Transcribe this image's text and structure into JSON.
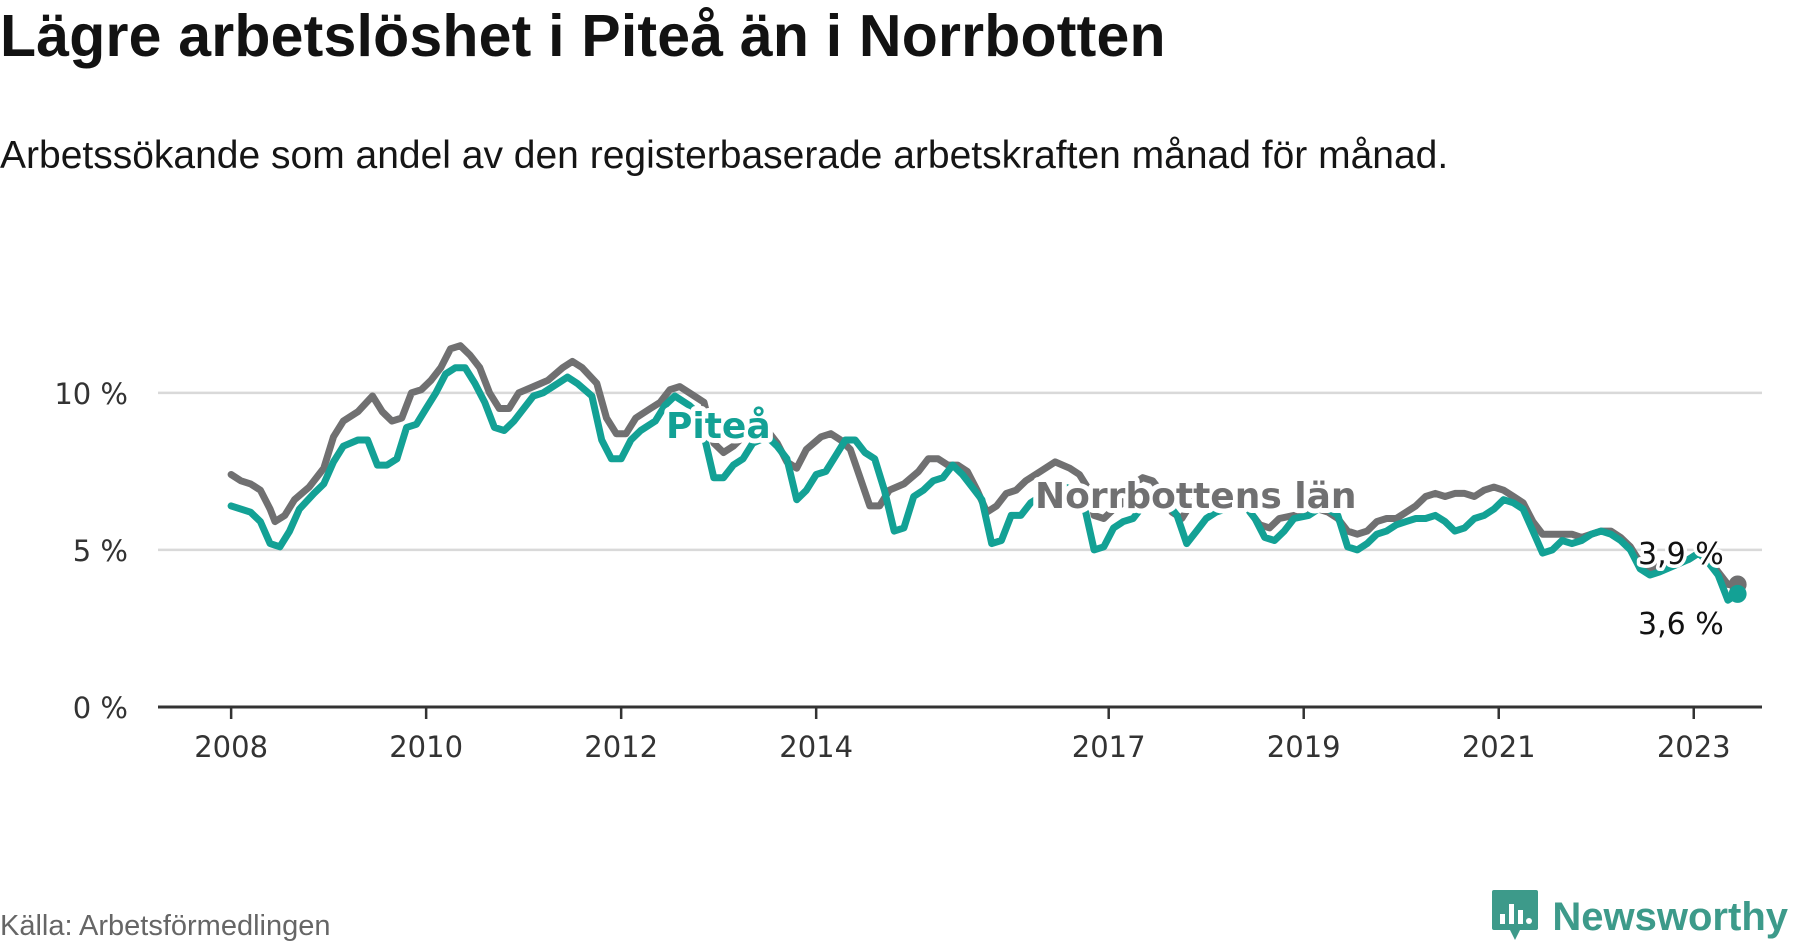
{
  "title": "Lägre arbetslöshet i Piteå än i Norrbotten",
  "subtitle": "Arbetssökande som andel av den registerbaserade arbetskraften månad för månad.",
  "source": "Källa: Arbetsförmedlingen",
  "logo": {
    "name": "Newsworthy",
    "icon": "newsworthy-logo-icon"
  },
  "colors": {
    "pitea": "#13a195",
    "norrbotten": "#707071",
    "grid": "#d9d9d9",
    "axis": "#333333",
    "brand": "#3d9a8a"
  },
  "chart_data": {
    "type": "line",
    "ylim": [
      0,
      12
    ],
    "xlim": [
      2007.25,
      2023.7
    ],
    "y_ticks": [
      {
        "value": 0,
        "label": "0 %"
      },
      {
        "value": 5,
        "label": "5 %"
      },
      {
        "value": 10,
        "label": "10 %"
      }
    ],
    "x_ticks": [
      {
        "value": 2008,
        "label": "2008"
      },
      {
        "value": 2010,
        "label": "2010"
      },
      {
        "value": 2012,
        "label": "2012"
      },
      {
        "value": 2014,
        "label": "2014"
      },
      {
        "value": 2017,
        "label": "2017"
      },
      {
        "value": 2019,
        "label": "2019"
      },
      {
        "value": 2021,
        "label": "2021"
      },
      {
        "value": 2023,
        "label": "2023"
      }
    ],
    "grid": true,
    "series": [
      {
        "name": "Norrbottens län",
        "label": "Norrbottens län",
        "color_key": "norrbotten",
        "end_label": "3,9 %",
        "end_value": 3.9,
        "points": [
          [
            2008.0,
            7.4
          ],
          [
            2008.1,
            7.2
          ],
          [
            2008.2,
            7.1
          ],
          [
            2008.3,
            6.9
          ],
          [
            2008.4,
            6.3
          ],
          [
            2008.45,
            5.9
          ],
          [
            2008.55,
            6.1
          ],
          [
            2008.65,
            6.6
          ],
          [
            2008.8,
            7.0
          ],
          [
            2008.95,
            7.6
          ],
          [
            2009.05,
            8.6
          ],
          [
            2009.15,
            9.1
          ],
          [
            2009.3,
            9.4
          ],
          [
            2009.45,
            9.9
          ],
          [
            2009.55,
            9.4
          ],
          [
            2009.65,
            9.1
          ],
          [
            2009.75,
            9.2
          ],
          [
            2009.85,
            10.0
          ],
          [
            2009.95,
            10.1
          ],
          [
            2010.05,
            10.4
          ],
          [
            2010.15,
            10.8
          ],
          [
            2010.25,
            11.4
          ],
          [
            2010.35,
            11.5
          ],
          [
            2010.45,
            11.2
          ],
          [
            2010.55,
            10.8
          ],
          [
            2010.65,
            10.0
          ],
          [
            2010.75,
            9.5
          ],
          [
            2010.85,
            9.5
          ],
          [
            2010.95,
            10.0
          ],
          [
            2011.1,
            10.2
          ],
          [
            2011.25,
            10.4
          ],
          [
            2011.4,
            10.8
          ],
          [
            2011.5,
            11.0
          ],
          [
            2011.6,
            10.8
          ],
          [
            2011.75,
            10.3
          ],
          [
            2011.85,
            9.2
          ],
          [
            2011.95,
            8.7
          ],
          [
            2012.05,
            8.7
          ],
          [
            2012.15,
            9.2
          ],
          [
            2012.3,
            9.5
          ],
          [
            2012.4,
            9.7
          ],
          [
            2012.5,
            10.1
          ],
          [
            2012.6,
            10.2
          ],
          [
            2012.75,
            9.9
          ],
          [
            2012.85,
            9.7
          ],
          [
            2012.95,
            8.4
          ],
          [
            2013.05,
            8.1
          ],
          [
            2013.15,
            8.3
          ],
          [
            2013.25,
            8.6
          ],
          [
            2013.4,
            8.9
          ],
          [
            2013.5,
            8.8
          ],
          [
            2013.6,
            8.4
          ],
          [
            2013.7,
            7.8
          ],
          [
            2013.8,
            7.6
          ],
          [
            2013.9,
            8.2
          ],
          [
            2014.05,
            8.6
          ],
          [
            2014.15,
            8.7
          ],
          [
            2014.25,
            8.5
          ],
          [
            2014.35,
            8.2
          ],
          [
            2014.45,
            7.3
          ],
          [
            2014.55,
            6.4
          ],
          [
            2014.65,
            6.4
          ],
          [
            2014.75,
            6.9
          ],
          [
            2014.9,
            7.1
          ],
          [
            2015.05,
            7.5
          ],
          [
            2015.15,
            7.9
          ],
          [
            2015.25,
            7.9
          ],
          [
            2015.35,
            7.7
          ],
          [
            2015.45,
            7.7
          ],
          [
            2015.55,
            7.5
          ],
          [
            2015.65,
            6.9
          ],
          [
            2015.75,
            6.2
          ],
          [
            2015.85,
            6.4
          ],
          [
            2015.95,
            6.8
          ],
          [
            2016.05,
            6.9
          ],
          [
            2016.15,
            7.2
          ],
          [
            2016.3,
            7.5
          ],
          [
            2016.45,
            7.8
          ],
          [
            2016.6,
            7.6
          ],
          [
            2016.7,
            7.4
          ],
          [
            2016.8,
            6.9
          ],
          [
            2016.85,
            6.1
          ],
          [
            2016.95,
            6.0
          ],
          [
            2017.05,
            6.3
          ],
          [
            2017.15,
            6.5
          ],
          [
            2017.25,
            7.1
          ],
          [
            2017.35,
            7.3
          ],
          [
            2017.45,
            7.2
          ],
          [
            2017.55,
            6.8
          ],
          [
            2017.65,
            6.2
          ],
          [
            2017.75,
            6.0
          ],
          [
            2017.85,
            6.5
          ],
          [
            2017.95,
            6.8
          ],
          [
            2018.05,
            6.9
          ],
          [
            2018.15,
            6.9
          ],
          [
            2018.25,
            6.8
          ],
          [
            2018.35,
            6.7
          ],
          [
            2018.45,
            6.2
          ],
          [
            2018.55,
            5.8
          ],
          [
            2018.65,
            5.7
          ],
          [
            2018.75,
            6.0
          ],
          [
            2018.9,
            6.1
          ],
          [
            2019.05,
            6.2
          ],
          [
            2019.15,
            6.3
          ],
          [
            2019.25,
            6.2
          ],
          [
            2019.35,
            6.0
          ],
          [
            2019.45,
            5.6
          ],
          [
            2019.55,
            5.5
          ],
          [
            2019.65,
            5.6
          ],
          [
            2019.75,
            5.9
          ],
          [
            2019.85,
            6.0
          ],
          [
            2019.95,
            6.0
          ],
          [
            2020.05,
            6.2
          ],
          [
            2020.15,
            6.4
          ],
          [
            2020.25,
            6.7
          ],
          [
            2020.35,
            6.8
          ],
          [
            2020.45,
            6.7
          ],
          [
            2020.55,
            6.8
          ],
          [
            2020.65,
            6.8
          ],
          [
            2020.75,
            6.7
          ],
          [
            2020.85,
            6.9
          ],
          [
            2020.95,
            7.0
          ],
          [
            2021.05,
            6.9
          ],
          [
            2021.15,
            6.7
          ],
          [
            2021.25,
            6.5
          ],
          [
            2021.35,
            5.9
          ],
          [
            2021.45,
            5.5
          ],
          [
            2021.6,
            5.5
          ],
          [
            2021.75,
            5.5
          ],
          [
            2021.85,
            5.4
          ],
          [
            2021.95,
            5.5
          ],
          [
            2022.05,
            5.6
          ],
          [
            2022.15,
            5.6
          ],
          [
            2022.25,
            5.4
          ],
          [
            2022.35,
            5.1
          ],
          [
            2022.45,
            4.6
          ],
          [
            2022.55,
            4.4
          ],
          [
            2022.65,
            4.5
          ],
          [
            2022.8,
            4.6
          ],
          [
            2022.95,
            4.7
          ],
          [
            2023.05,
            4.9
          ],
          [
            2023.15,
            4.7
          ],
          [
            2023.25,
            4.3
          ],
          [
            2023.35,
            3.9
          ],
          [
            2023.45,
            3.9
          ]
        ]
      },
      {
        "name": "Piteå",
        "label": "Piteå",
        "color_key": "pitea",
        "end_label": "3,6 %",
        "end_value": 3.6,
        "points": [
          [
            2008.0,
            6.4
          ],
          [
            2008.1,
            6.3
          ],
          [
            2008.2,
            6.2
          ],
          [
            2008.3,
            5.9
          ],
          [
            2008.4,
            5.2
          ],
          [
            2008.5,
            5.1
          ],
          [
            2008.6,
            5.6
          ],
          [
            2008.7,
            6.3
          ],
          [
            2008.85,
            6.8
          ],
          [
            2008.95,
            7.1
          ],
          [
            2009.05,
            7.8
          ],
          [
            2009.15,
            8.3
          ],
          [
            2009.3,
            8.5
          ],
          [
            2009.4,
            8.5
          ],
          [
            2009.5,
            7.7
          ],
          [
            2009.6,
            7.7
          ],
          [
            2009.7,
            7.9
          ],
          [
            2009.8,
            8.9
          ],
          [
            2009.9,
            9.0
          ],
          [
            2010.0,
            9.5
          ],
          [
            2010.1,
            10.0
          ],
          [
            2010.2,
            10.6
          ],
          [
            2010.3,
            10.8
          ],
          [
            2010.4,
            10.8
          ],
          [
            2010.5,
            10.3
          ],
          [
            2010.6,
            9.7
          ],
          [
            2010.7,
            8.9
          ],
          [
            2010.8,
            8.8
          ],
          [
            2010.9,
            9.1
          ],
          [
            2011.0,
            9.5
          ],
          [
            2011.1,
            9.9
          ],
          [
            2011.2,
            10.0
          ],
          [
            2011.35,
            10.3
          ],
          [
            2011.45,
            10.5
          ],
          [
            2011.55,
            10.3
          ],
          [
            2011.7,
            9.9
          ],
          [
            2011.8,
            8.5
          ],
          [
            2011.9,
            7.9
          ],
          [
            2012.0,
            7.9
          ],
          [
            2012.1,
            8.5
          ],
          [
            2012.2,
            8.8
          ],
          [
            2012.35,
            9.1
          ],
          [
            2012.45,
            9.6
          ],
          [
            2012.55,
            9.9
          ],
          [
            2012.7,
            9.6
          ],
          [
            2012.8,
            9.3
          ],
          [
            2012.95,
            7.3
          ],
          [
            2013.05,
            7.3
          ],
          [
            2013.15,
            7.7
          ],
          [
            2013.25,
            7.9
          ],
          [
            2013.35,
            8.4
          ],
          [
            2013.5,
            8.6
          ],
          [
            2013.6,
            8.3
          ],
          [
            2013.7,
            7.9
          ],
          [
            2013.8,
            6.6
          ],
          [
            2013.9,
            6.9
          ],
          [
            2014.0,
            7.4
          ],
          [
            2014.1,
            7.5
          ],
          [
            2014.2,
            8.0
          ],
          [
            2014.3,
            8.5
          ],
          [
            2014.4,
            8.5
          ],
          [
            2014.5,
            8.1
          ],
          [
            2014.6,
            7.9
          ],
          [
            2014.7,
            6.9
          ],
          [
            2014.8,
            5.6
          ],
          [
            2014.9,
            5.7
          ],
          [
            2015.0,
            6.7
          ],
          [
            2015.1,
            6.9
          ],
          [
            2015.2,
            7.2
          ],
          [
            2015.3,
            7.3
          ],
          [
            2015.4,
            7.7
          ],
          [
            2015.5,
            7.4
          ],
          [
            2015.6,
            7.0
          ],
          [
            2015.7,
            6.6
          ],
          [
            2015.8,
            5.2
          ],
          [
            2015.9,
            5.3
          ],
          [
            2016.0,
            6.1
          ],
          [
            2016.1,
            6.1
          ],
          [
            2016.2,
            6.5
          ],
          [
            2016.3,
            6.7
          ],
          [
            2016.45,
            7.0
          ],
          [
            2016.55,
            7.0
          ],
          [
            2016.65,
            6.9
          ],
          [
            2016.75,
            6.4
          ],
          [
            2016.85,
            5.0
          ],
          [
            2016.95,
            5.1
          ],
          [
            2017.05,
            5.7
          ],
          [
            2017.15,
            5.9
          ],
          [
            2017.25,
            6.0
          ],
          [
            2017.35,
            6.4
          ],
          [
            2017.5,
            6.8
          ],
          [
            2017.6,
            6.5
          ],
          [
            2017.7,
            6.1
          ],
          [
            2017.8,
            5.2
          ],
          [
            2017.9,
            5.6
          ],
          [
            2018.0,
            6.0
          ],
          [
            2018.1,
            6.2
          ],
          [
            2018.2,
            6.3
          ],
          [
            2018.3,
            6.5
          ],
          [
            2018.4,
            6.4
          ],
          [
            2018.5,
            6.0
          ],
          [
            2018.6,
            5.4
          ],
          [
            2018.7,
            5.3
          ],
          [
            2018.8,
            5.6
          ],
          [
            2018.9,
            6.0
          ],
          [
            2019.05,
            6.1
          ],
          [
            2019.15,
            6.3
          ],
          [
            2019.25,
            6.3
          ],
          [
            2019.35,
            6.1
          ],
          [
            2019.45,
            5.1
          ],
          [
            2019.55,
            5.0
          ],
          [
            2019.65,
            5.2
          ],
          [
            2019.75,
            5.5
          ],
          [
            2019.85,
            5.6
          ],
          [
            2019.95,
            5.8
          ],
          [
            2020.05,
            5.9
          ],
          [
            2020.15,
            6.0
          ],
          [
            2020.25,
            6.0
          ],
          [
            2020.35,
            6.1
          ],
          [
            2020.45,
            5.9
          ],
          [
            2020.55,
            5.6
          ],
          [
            2020.65,
            5.7
          ],
          [
            2020.75,
            6.0
          ],
          [
            2020.85,
            6.1
          ],
          [
            2020.95,
            6.3
          ],
          [
            2021.05,
            6.6
          ],
          [
            2021.15,
            6.5
          ],
          [
            2021.25,
            6.3
          ],
          [
            2021.35,
            5.6
          ],
          [
            2021.45,
            4.9
          ],
          [
            2021.55,
            5.0
          ],
          [
            2021.65,
            5.3
          ],
          [
            2021.75,
            5.2
          ],
          [
            2021.85,
            5.3
          ],
          [
            2021.95,
            5.5
          ],
          [
            2022.05,
            5.6
          ],
          [
            2022.15,
            5.5
          ],
          [
            2022.25,
            5.3
          ],
          [
            2022.35,
            5.0
          ],
          [
            2022.45,
            4.4
          ],
          [
            2022.55,
            4.2
          ],
          [
            2022.65,
            4.3
          ],
          [
            2022.8,
            4.5
          ],
          [
            2022.95,
            4.7
          ],
          [
            2023.05,
            4.9
          ],
          [
            2023.15,
            4.6
          ],
          [
            2023.25,
            4.2
          ],
          [
            2023.35,
            3.4
          ],
          [
            2023.45,
            3.6
          ]
        ]
      }
    ]
  }
}
